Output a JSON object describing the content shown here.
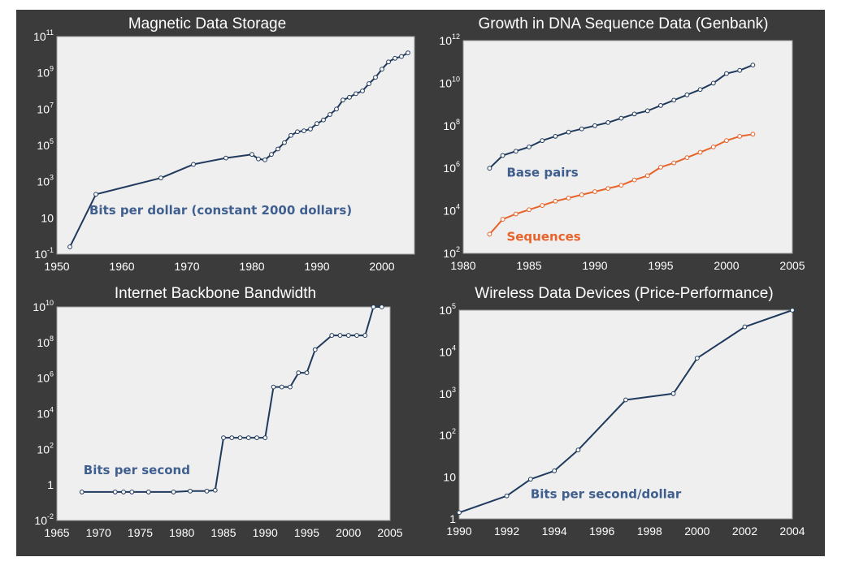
{
  "colors": {
    "background": "#3b3b3b",
    "plot_bg": "#efefef",
    "navy": "#1f3a5c",
    "orange": "#e8632a",
    "label_blue": "#3f5f8f",
    "marker_fill": "#ffffff"
  },
  "chart_data": [
    {
      "id": "magnetic",
      "type": "line",
      "title": "Magnetic Data Storage",
      "yscale": "log",
      "xlim": [
        1950,
        2005
      ],
      "ylim": [
        -1,
        11
      ],
      "xticks": [
        1950,
        1960,
        1970,
        1980,
        1990,
        2000
      ],
      "xtick_labels": [
        "1950",
        "1960",
        "1970",
        "1980",
        "1990",
        "2000"
      ],
      "yticks": [
        {
          "v": -1,
          "b": "10",
          "e": "-1"
        },
        {
          "v": 1,
          "b": "10",
          "e": ""
        },
        {
          "v": 3,
          "b": "10",
          "e": "3"
        },
        {
          "v": 5,
          "b": "10",
          "e": "5"
        },
        {
          "v": 7,
          "b": "10",
          "e": "7"
        },
        {
          "v": 9,
          "b": "10",
          "e": "9"
        },
        {
          "v": 11,
          "b": "10",
          "e": "11"
        }
      ],
      "series": [
        {
          "name": "Bits per dollar (constant 2000 dollars)",
          "color": "#1f3a5c",
          "label_color": "#3f5f8f",
          "label_at": [
            1955,
            1.2
          ],
          "x": [
            1952,
            1956,
            1966,
            1971,
            1976,
            1980,
            1981,
            1982,
            1983,
            1984,
            1985,
            1986,
            1987,
            1988,
            1989,
            1990,
            1991,
            1992,
            1993,
            1994,
            1995,
            1996,
            1997,
            1998,
            1999,
            2000,
            2001,
            2002,
            2003,
            2004
          ],
          "y": [
            -0.6,
            2.3,
            3.2,
            3.95,
            4.3,
            4.5,
            4.25,
            4.2,
            4.5,
            4.8,
            5.15,
            5.55,
            5.75,
            5.8,
            5.9,
            6.2,
            6.4,
            6.7,
            7.0,
            7.5,
            7.65,
            7.85,
            8.0,
            8.4,
            8.75,
            9.2,
            9.6,
            9.8,
            9.9,
            10.1
          ]
        }
      ]
    },
    {
      "id": "dna",
      "type": "line",
      "title": "Growth in DNA Sequence Data (Genbank)",
      "yscale": "log",
      "xlim": [
        1980,
        2005
      ],
      "ylim": [
        2,
        12
      ],
      "xticks": [
        1980,
        1985,
        1990,
        1995,
        2000,
        2005
      ],
      "xtick_labels": [
        "1980",
        "1985",
        "1990",
        "1995",
        "2000",
        "2005"
      ],
      "yticks": [
        {
          "v": 2,
          "b": "10",
          "e": "2"
        },
        {
          "v": 4,
          "b": "10",
          "e": "4"
        },
        {
          "v": 6,
          "b": "10",
          "e": "6"
        },
        {
          "v": 8,
          "b": "10",
          "e": "8"
        },
        {
          "v": 10,
          "b": "10",
          "e": "10"
        },
        {
          "v": 12,
          "b": "10",
          "e": "12"
        }
      ],
      "series": [
        {
          "name": "Base pairs",
          "color": "#1f3a5c",
          "label_color": "#3f5f8f",
          "label_at": [
            1983.3,
            5.6
          ],
          "x": [
            1982,
            1983,
            1984,
            1985,
            1986,
            1987,
            1988,
            1989,
            1990,
            1991,
            1992,
            1993,
            1994,
            1995,
            1996,
            1997,
            1998,
            1999,
            2000,
            2001,
            2002
          ],
          "y": [
            6.0,
            6.6,
            6.8,
            7.0,
            7.3,
            7.5,
            7.7,
            7.85,
            8.0,
            8.15,
            8.35,
            8.55,
            8.7,
            8.95,
            9.2,
            9.45,
            9.7,
            10.0,
            10.45,
            10.6,
            10.85
          ]
        },
        {
          "name": "Sequences",
          "color": "#e8632a",
          "label_color": "#e8632a",
          "label_at": [
            1983.3,
            2.6
          ],
          "x": [
            1982,
            1983,
            1984,
            1985,
            1986,
            1987,
            1988,
            1989,
            1990,
            1991,
            1992,
            1993,
            1994,
            1995,
            1996,
            1997,
            1998,
            1999,
            2000,
            2001,
            2002
          ],
          "y": [
            2.9,
            3.6,
            3.85,
            4.05,
            4.25,
            4.45,
            4.6,
            4.75,
            4.9,
            5.05,
            5.2,
            5.45,
            5.65,
            6.05,
            6.25,
            6.5,
            6.75,
            7.0,
            7.3,
            7.5,
            7.6
          ]
        }
      ]
    },
    {
      "id": "internet",
      "type": "line",
      "title": "Internet Backbone Bandwidth",
      "yscale": "log",
      "xlim": [
        1965,
        2005
      ],
      "ylim": [
        -2,
        10
      ],
      "xticks": [
        1965,
        1970,
        1975,
        1980,
        1985,
        1990,
        1995,
        2000,
        2005
      ],
      "xtick_labels": [
        "1965",
        "1970",
        "1975",
        "1980",
        "1985",
        "1990",
        "1995",
        "2000",
        "2005"
      ],
      "yticks": [
        {
          "v": -2,
          "b": "10",
          "e": "-2"
        },
        {
          "v": 0,
          "b": "1",
          "e": ""
        },
        {
          "v": 2,
          "b": "10",
          "e": "2"
        },
        {
          "v": 4,
          "b": "10",
          "e": "4"
        },
        {
          "v": 6,
          "b": "10",
          "e": "6"
        },
        {
          "v": 8,
          "b": "10",
          "e": "8"
        },
        {
          "v": 10,
          "b": "10",
          "e": "10"
        }
      ],
      "series": [
        {
          "name": "Bits per second",
          "color": "#1f3a5c",
          "label_color": "#3f5f8f",
          "label_at": [
            1968.2,
            0.6
          ],
          "x": [
            1968,
            1972,
            1973,
            1974,
            1976,
            1979,
            1981,
            1983,
            1984,
            1985,
            1986,
            1987,
            1988,
            1989,
            1990,
            1991,
            1992,
            1993,
            1994,
            1995,
            1996,
            1998,
            1999,
            2000,
            2001,
            2002,
            2003,
            2004
          ],
          "y": [
            -0.4,
            -0.4,
            -0.4,
            -0.4,
            -0.4,
            -0.4,
            -0.35,
            -0.35,
            -0.3,
            2.65,
            2.65,
            2.65,
            2.65,
            2.65,
            2.65,
            5.5,
            5.5,
            5.5,
            6.3,
            6.3,
            7.6,
            8.4,
            8.4,
            8.4,
            8.4,
            8.4,
            10.0,
            10.0
          ]
        }
      ]
    },
    {
      "id": "wireless",
      "type": "line",
      "title": "Wireless Data Devices (Price-Performance)",
      "yscale": "log",
      "xlim": [
        1990,
        2004
      ],
      "ylim": [
        0,
        5
      ],
      "xticks": [
        1990,
        1992,
        1994,
        1996,
        1998,
        2000,
        2002,
        2004
      ],
      "xtick_labels": [
        "1990",
        "1992",
        "1994",
        "1996",
        "1998",
        "2000",
        "2002",
        "2004"
      ],
      "yticks": [
        {
          "v": 0,
          "b": "1",
          "e": ""
        },
        {
          "v": 1,
          "b": "10",
          "e": ""
        },
        {
          "v": 2,
          "b": "10",
          "e": "2"
        },
        {
          "v": 3,
          "b": "10",
          "e": "3"
        },
        {
          "v": 4,
          "b": "10",
          "e": "4"
        },
        {
          "v": 5,
          "b": "10",
          "e": "5"
        }
      ],
      "series": [
        {
          "name": "Bits per second/dollar",
          "color": "#1f3a5c",
          "label_color": "#3f5f8f",
          "label_at": [
            1993.0,
            0.5
          ],
          "x": [
            1990,
            1992,
            1993,
            1994,
            1995,
            1997,
            1999,
            2000,
            2002,
            2004
          ],
          "y": [
            0.15,
            0.55,
            0.95,
            1.15,
            1.65,
            2.85,
            3.0,
            3.85,
            4.6,
            5.0
          ]
        }
      ]
    }
  ]
}
